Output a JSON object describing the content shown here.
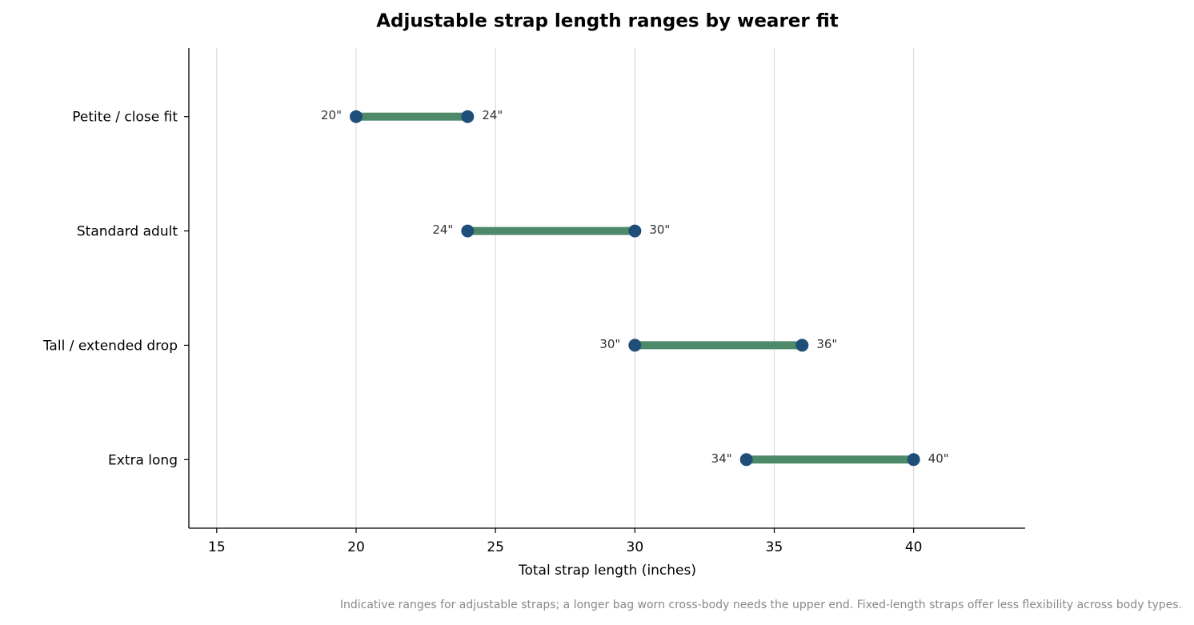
{
  "chart_data": {
    "type": "dumbbell",
    "title": "Adjustable strap length ranges by wearer fit",
    "xlabel": "Total strap length (inches)",
    "note": "Indicative ranges for adjustable straps; a longer bag worn cross-body needs the upper end. Fixed-length straps offer less flexibility across body types.",
    "categories": [
      "Petite / close fit",
      "Standard adult",
      "Tall / extended drop",
      "Extra long"
    ],
    "low": {
      "values": [
        20,
        24,
        30,
        34
      ],
      "value_labels": [
        "20\"",
        "24\"",
        "30\"",
        "34\""
      ]
    },
    "high": {
      "values": [
        24,
        30,
        36,
        40
      ],
      "value_labels": [
        "24\"",
        "30\"",
        "36\"",
        "40\""
      ]
    },
    "bar_color": "#4e8a6a",
    "dot_color": "#1f4e79",
    "xlim": [
      14,
      44
    ],
    "xticks": [
      15,
      20,
      25,
      30,
      35,
      40
    ],
    "grid": true
  }
}
